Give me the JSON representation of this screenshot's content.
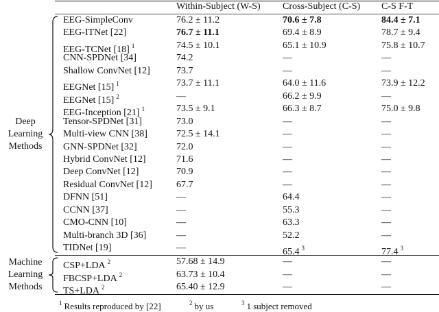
{
  "table": {
    "header": [
      "Within-Subject (W-S)",
      "Cross-Subject (C-S)",
      "C-S F-T"
    ],
    "groups": [
      {
        "label": [
          "Deep",
          "Learning",
          "Methods"
        ],
        "rows": [
          [
            {
              "text": "EEG-SimpleConv"
            },
            {
              "text": "76.2 ± 11.2"
            },
            {
              "text": "70.6 ± 7.8",
              "bold": true
            },
            {
              "text": "84.4 ± 7.1",
              "bold": true
            }
          ],
          [
            {
              "text": "EEG-ITNet [22]"
            },
            {
              "text": "76.7 ± 11.1",
              "bold": true
            },
            {
              "text": "69.4 ± 8.9"
            },
            {
              "text": "78.7 ± 9.4"
            }
          ],
          [
            {
              "text": "EEG-TCNet [18]",
              "sup": "1"
            },
            {
              "text": "74.5 ± 10.1"
            },
            {
              "text": "65.1 ± 10.9"
            },
            {
              "text": "75.8 ± 10.7"
            }
          ],
          [
            {
              "text": "CNN-SPDNet [34]"
            },
            {
              "text": "74.2"
            },
            {
              "text": "—"
            },
            {
              "text": "—"
            }
          ],
          [
            {
              "text": "Shallow ConvNet [12]"
            },
            {
              "text": "73.7"
            },
            {
              "text": "—"
            },
            {
              "text": "—"
            }
          ],
          [
            {
              "text": "EEGNet [15]",
              "sup": "1"
            },
            {
              "text": "73.7 ± 11.1"
            },
            {
              "text": "64.0 ± 11.6"
            },
            {
              "text": "73.9 ± 12.2"
            }
          ],
          [
            {
              "text": "EEGNet [15]",
              "sup": "2"
            },
            {
              "text": "—"
            },
            {
              "text": "66.2 ± 9.9"
            },
            {
              "text": "—"
            }
          ],
          [
            {
              "text": "EEG-Inception [21]",
              "sup": "1"
            },
            {
              "text": "73.5 ± 9.1"
            },
            {
              "text": "66.3 ± 8.7"
            },
            {
              "text": "75.0 ± 9.8"
            }
          ],
          [
            {
              "text": "Tensor-SPDNet [31]"
            },
            {
              "text": "73.0"
            },
            {
              "text": "—"
            },
            {
              "text": "—"
            }
          ],
          [
            {
              "text": "Multi-view CNN [38]"
            },
            {
              "text": "72.5 ± 14.1"
            },
            {
              "text": "—"
            },
            {
              "text": "—"
            }
          ],
          [
            {
              "text": "GNN-SPDNet [32]"
            },
            {
              "text": "72.0"
            },
            {
              "text": "—"
            },
            {
              "text": "—"
            }
          ],
          [
            {
              "text": "Hybrid ConvNet [12]"
            },
            {
              "text": "71.6"
            },
            {
              "text": "—"
            },
            {
              "text": "—"
            }
          ],
          [
            {
              "text": "Deep ConvNet [12]"
            },
            {
              "text": "70.9"
            },
            {
              "text": "—"
            },
            {
              "text": "—"
            }
          ],
          [
            {
              "text": "Residual ConvNet [12]"
            },
            {
              "text": "67.7"
            },
            {
              "text": "—"
            },
            {
              "text": "—"
            }
          ],
          [
            {
              "text": "DFNN [51]"
            },
            {
              "text": "—"
            },
            {
              "text": "64.4"
            },
            {
              "text": "—"
            }
          ],
          [
            {
              "text": "CCNN [37]"
            },
            {
              "text": "—"
            },
            {
              "text": "55.3"
            },
            {
              "text": "—"
            }
          ],
          [
            {
              "text": "CMO-CNN [10]"
            },
            {
              "text": "—"
            },
            {
              "text": "63.3"
            },
            {
              "text": "—"
            }
          ],
          [
            {
              "text": "Multi-branch 3D [36]"
            },
            {
              "text": "—"
            },
            {
              "text": "52.2"
            },
            {
              "text": "—"
            }
          ],
          [
            {
              "text": "TIDNet [19]"
            },
            {
              "text": "—"
            },
            {
              "text": "65.4",
              "sup": "3"
            },
            {
              "text": "77.4",
              "sup": "3"
            }
          ]
        ]
      },
      {
        "label": [
          "Machine",
          "Learning",
          "Methods"
        ],
        "rows": [
          [
            {
              "text": "CSP+LDA",
              "sup": "2"
            },
            {
              "text": "57.68 ± 14.9"
            },
            {
              "text": "—"
            },
            {
              "text": "—"
            }
          ],
          [
            {
              "text": "FBCSP+LDA",
              "sup": "2"
            },
            {
              "text": "63.73 ± 10.4"
            },
            {
              "text": "—"
            },
            {
              "text": "—"
            }
          ],
          [
            {
              "text": "TS+LDA",
              "sup": "2"
            },
            {
              "text": "65.40 ± 12.9"
            },
            {
              "text": "—"
            },
            {
              "text": "—"
            }
          ]
        ]
      }
    ],
    "footnotes": [
      {
        "mark": "1",
        "text": "Results reproduced by [22]"
      },
      {
        "mark": "2",
        "text": "by us"
      },
      {
        "mark": "3",
        "text": "1 subject removed"
      }
    ]
  }
}
